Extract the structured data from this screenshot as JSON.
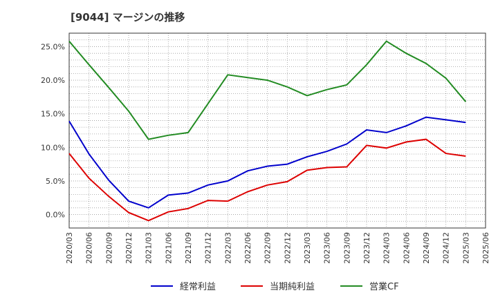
{
  "chart_data": {
    "type": "line",
    "title": "[9044]  マージンの推移",
    "x": [
      "2020/03",
      "2020/06",
      "2020/09",
      "2020/12",
      "2021/03",
      "2021/06",
      "2021/09",
      "2021/12",
      "2022/03",
      "2022/06",
      "2022/09",
      "2022/12",
      "2023/03",
      "2023/06",
      "2023/09",
      "2023/12",
      "2024/03",
      "2024/06",
      "2024/09",
      "2024/12",
      "2025/03",
      "2025/06"
    ],
    "xlabel": "",
    "ylabel": "",
    "ylim": [
      -2,
      27
    ],
    "yticks": [
      0,
      5,
      10,
      15,
      20,
      25
    ],
    "ytick_labels": [
      "0.0%",
      "5.0%",
      "10.0%",
      "15.0%",
      "20.0%",
      "25.0%"
    ],
    "grid": true,
    "legend_position": "bottom",
    "series": [
      {
        "name": "経常利益",
        "color": "#0000cc",
        "values": [
          13.9,
          9.0,
          5.1,
          2.0,
          1.0,
          2.9,
          3.2,
          4.4,
          5.0,
          6.5,
          7.2,
          7.5,
          8.6,
          9.4,
          10.5,
          12.6,
          12.2,
          13.2,
          14.5,
          14.1,
          13.7,
          null
        ]
      },
      {
        "name": "当期純利益",
        "color": "#dd0000",
        "values": [
          9.1,
          5.4,
          2.7,
          0.3,
          -0.9,
          0.4,
          0.9,
          2.1,
          2.0,
          3.4,
          4.4,
          4.9,
          6.6,
          7.0,
          7.1,
          10.3,
          9.9,
          10.8,
          11.2,
          9.1,
          8.7,
          null
        ]
      },
      {
        "name": "営業CF",
        "color": "#228B22",
        "values": [
          25.8,
          22.3,
          18.9,
          15.4,
          11.2,
          11.8,
          12.2,
          16.5,
          20.8,
          20.4,
          20.0,
          19.0,
          17.7,
          18.6,
          19.3,
          22.3,
          25.8,
          24.0,
          22.5,
          20.3,
          16.8,
          null
        ]
      }
    ]
  }
}
